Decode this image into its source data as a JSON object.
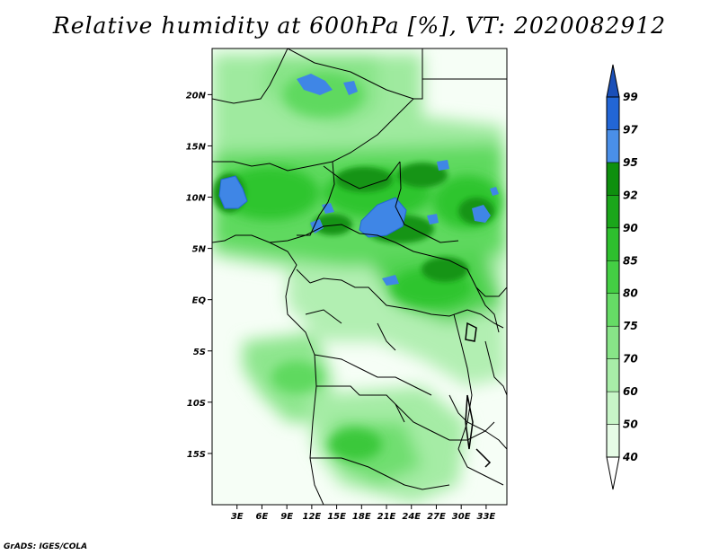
{
  "title": "Relative humidity at 600hPa [%], VT: 2020082912",
  "credit": "GrADS: IGES/COLA",
  "map": {
    "lon_range": [
      0,
      35.5
    ],
    "lat_range": [
      -20,
      24.5
    ],
    "lon_ticks": [
      "3E",
      "6E",
      "9E",
      "12E",
      "15E",
      "18E",
      "21E",
      "24E",
      "27E",
      "30E",
      "33E"
    ],
    "lat_ticks": [
      "20N",
      "15N",
      "10N",
      "5N",
      "EQ",
      "5S",
      "10S",
      "15S"
    ]
  },
  "colorbar": {
    "levels": [
      "40",
      "50",
      "60",
      "70",
      "75",
      "80",
      "85",
      "90",
      "92",
      "95",
      "97",
      "99"
    ],
    "colors": [
      "#ffffff",
      "#e6fbe6",
      "#c8f5c8",
      "#a8eda8",
      "#88e488",
      "#66db66",
      "#44cf44",
      "#2ec02e",
      "#1ba61b",
      "#0e8f0e",
      "#4a8fe8",
      "#2266d6",
      "#1a4fb8"
    ]
  }
}
